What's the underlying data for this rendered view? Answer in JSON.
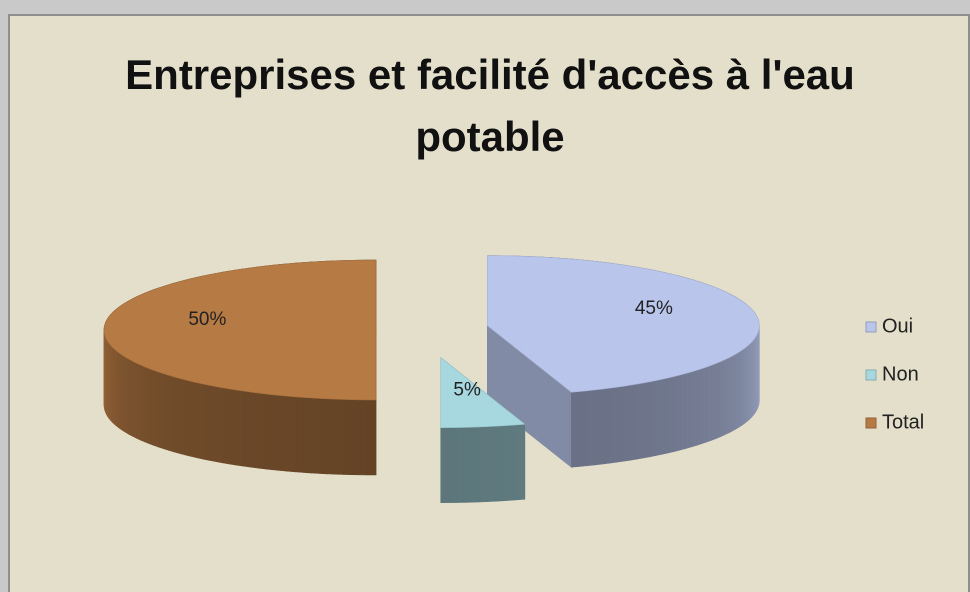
{
  "chart_data": {
    "type": "pie3d",
    "title": "Entreprises et facilité d'accès à l'eau potable",
    "categories": [
      "Oui",
      "Non",
      "Total"
    ],
    "values": [
      45,
      5,
      50
    ],
    "value_labels": [
      "45%",
      "5%",
      "50%"
    ],
    "colors": [
      "#b9c5ea",
      "#a7d7df",
      "#b67a44"
    ],
    "legend": "right"
  }
}
